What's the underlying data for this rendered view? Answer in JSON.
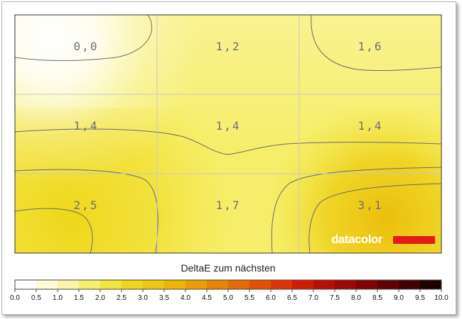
{
  "chart_data": {
    "type": "heatmap",
    "grid": {
      "rows": 3,
      "cols": 3
    },
    "values": [
      [
        "0,0",
        "1,2",
        "1,6"
      ],
      [
        "1,4",
        "1,4",
        "1,4"
      ],
      [
        "2,5",
        "1,7",
        "3,1"
      ]
    ],
    "legend": {
      "title": "DeltaE zum nächsten",
      "ticks": [
        "0.0",
        "0.5",
        "1.0",
        "1.5",
        "2.0",
        "2.5",
        "3.0",
        "3.5",
        "4.0",
        "4.5",
        "5.0",
        "5.5",
        "6.0",
        "6.5",
        "7.0",
        "7.5",
        "8.0",
        "8.5",
        "9.0",
        "9.5",
        "10.0"
      ],
      "colors": [
        "#ffffff",
        "#fdfbd8",
        "#faf5a8",
        "#f6ef6e",
        "#f2e43c",
        "#eed71a",
        "#ecc70c",
        "#ebb407",
        "#e99e04",
        "#e78402",
        "#e56a02",
        "#e34f03",
        "#de3404",
        "#cf1c04",
        "#b80e04",
        "#9c0804",
        "#7f0403",
        "#610202",
        "#420101",
        "#1f0000"
      ]
    },
    "logo": "datacolor",
    "grid_lines": true
  }
}
